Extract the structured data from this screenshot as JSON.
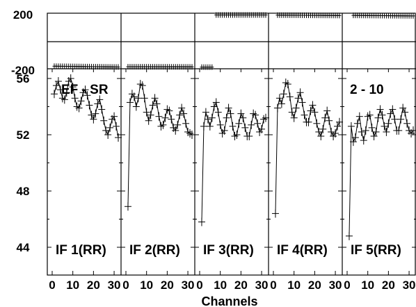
{
  "chart_data": {
    "type": "line",
    "title": "EF - SR",
    "annotation": "2 - 10",
    "xlabel": "Channels",
    "x_ticks": [
      "0",
      "10",
      "20",
      "30"
    ],
    "xlim": [
      0,
      32
    ],
    "phase": {
      "ylim": [
        -200,
        200
      ],
      "y_ticks": [
        "200",
        "-200"
      ],
      "series": [
        {
          "name": "IF 1(RR)",
          "x": [
            1,
            32
          ],
          "y": [
            -191,
            -197
          ]
        },
        {
          "name": "IF 2(RR)",
          "x": [
            1,
            32
          ],
          "y": [
            -195,
            -196
          ]
        },
        {
          "name": "IF 3(RR)",
          "x": [
            1,
            6
          ],
          "y": [
            -198,
            -198
          ]
        },
        {
          "name": "IF 3(RR)",
          "x": [
            8,
            32
          ],
          "y": [
            197,
            197
          ]
        },
        {
          "name": "IF 4(RR)",
          "x": [
            2,
            32
          ],
          "y": [
            196,
            193
          ]
        },
        {
          "name": "IF 5(RR)",
          "x": [
            3,
            32
          ],
          "y": [
            194,
            190
          ]
        }
      ]
    },
    "amplitude": {
      "ylim": [
        43,
        56
      ],
      "y_ticks": [
        "56",
        "52",
        "48",
        "44"
      ],
      "series": [
        {
          "name": "IF 1(RR)",
          "x": [
            1,
            2,
            3,
            4,
            5,
            6,
            7,
            8,
            9,
            10,
            11,
            12,
            13,
            14,
            15,
            16,
            17,
            18,
            19,
            20,
            21,
            22,
            23,
            24,
            25,
            26,
            27,
            28,
            29,
            30,
            31,
            32
          ],
          "y": [
            54.9,
            55.5,
            55.8,
            55.2,
            54.6,
            54.5,
            55.0,
            55.8,
            56.0,
            55.4,
            54.6,
            54.0,
            53.9,
            54.4,
            55.0,
            55.2,
            54.8,
            54.1,
            53.4,
            53.1,
            53.5,
            54.2,
            54.5,
            53.8,
            53.0,
            52.3,
            52.0,
            52.5,
            53.1,
            53.3,
            52.6,
            51.8
          ]
        },
        {
          "name": "IF 2(RR)",
          "x": [
            1,
            2,
            3,
            4,
            5,
            6,
            7,
            8,
            9,
            10,
            11,
            12,
            13,
            14,
            15,
            16,
            17,
            18,
            19,
            20,
            21,
            22,
            23,
            24,
            25,
            26,
            27,
            28,
            29,
            30,
            31,
            32
          ],
          "y": [
            46.9,
            54.3,
            54.9,
            54.7,
            54.0,
            54.6,
            55.6,
            55.5,
            54.6,
            53.6,
            53.0,
            53.4,
            54.1,
            54.6,
            54.2,
            53.3,
            52.6,
            52.7,
            53.2,
            53.8,
            53.7,
            53.1,
            52.5,
            52.3,
            52.7,
            53.4,
            53.9,
            53.5,
            52.8,
            52.2,
            52.1,
            52.0
          ]
        },
        {
          "name": "IF 3(RR)",
          "x": [
            1,
            2,
            3,
            4,
            5,
            6,
            7,
            8,
            9,
            10,
            11,
            12,
            13,
            14,
            15,
            16,
            17,
            18,
            19,
            20,
            21,
            22,
            23,
            24,
            25,
            26,
            27,
            28,
            29,
            30,
            31,
            32
          ],
          "y": [
            45.8,
            52.6,
            53.6,
            53.1,
            52.6,
            53.2,
            54.0,
            54.3,
            53.6,
            52.7,
            52.1,
            52.3,
            53.2,
            53.9,
            53.5,
            52.6,
            51.9,
            52.0,
            52.8,
            53.5,
            53.2,
            52.5,
            51.9,
            51.9,
            52.7,
            53.5,
            53.4,
            52.8,
            52.2,
            52.4,
            53.1,
            53.2
          ]
        },
        {
          "name": "IF 4(RR)",
          "x": [
            1,
            2,
            3,
            4,
            5,
            6,
            7,
            8,
            9,
            10,
            11,
            12,
            13,
            14,
            15,
            16,
            17,
            18,
            19,
            20,
            21,
            22,
            23,
            24,
            25,
            26,
            27,
            28,
            29,
            30,
            31,
            32
          ],
          "y": [
            46.4,
            53.9,
            54.6,
            54.2,
            54.9,
            55.7,
            55.6,
            54.7,
            53.6,
            53.2,
            53.9,
            54.6,
            55.0,
            54.3,
            53.4,
            52.9,
            52.9,
            53.7,
            54.1,
            53.6,
            52.8,
            52.2,
            51.9,
            52.4,
            53.2,
            53.7,
            53.0,
            52.2,
            51.9,
            52.1,
            52.6,
            52.9
          ]
        },
        {
          "name": "IF 5(RR)",
          "x": [
            1,
            2,
            3,
            4,
            5,
            6,
            7,
            8,
            9,
            10,
            11,
            12,
            13,
            14,
            15,
            16,
            17,
            18,
            19,
            20,
            21,
            22,
            23,
            24,
            25,
            26,
            27,
            28,
            29,
            30,
            31,
            32
          ],
          "y": [
            44.8,
            52.6,
            51.5,
            51.8,
            52.8,
            53.3,
            52.2,
            51.6,
            52.3,
            53.3,
            53.4,
            52.5,
            51.9,
            52.2,
            53.2,
            53.8,
            53.4,
            52.6,
            52.2,
            52.8,
            53.5,
            53.8,
            53.1,
            52.3,
            52.3,
            53.1,
            53.9,
            53.6,
            52.8,
            52.3,
            52.1,
            52.3
          ]
        }
      ]
    }
  }
}
